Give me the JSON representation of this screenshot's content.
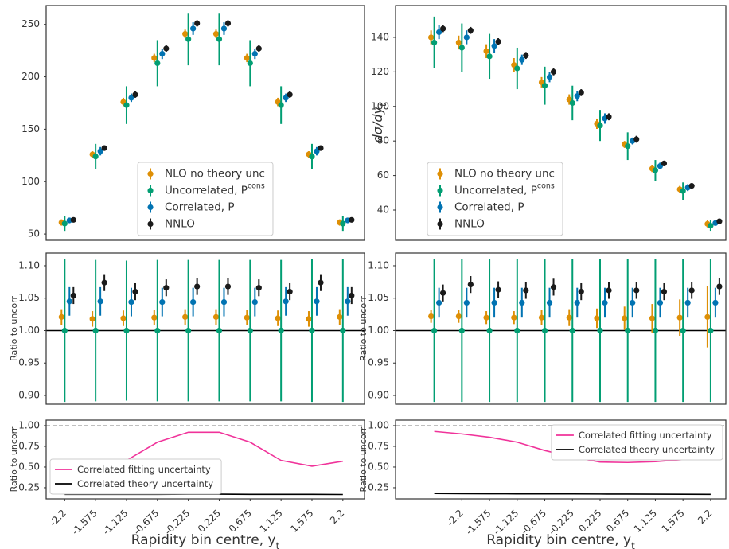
{
  "chart_data": [
    {
      "type": "errorbar",
      "x": [
        0,
        1,
        2,
        3,
        4,
        5,
        6,
        7,
        8,
        9
      ],
      "xlim": [
        -0.6,
        9.7
      ],
      "ylim": [
        44,
        268
      ],
      "yticks": [
        50,
        100,
        150,
        200,
        250
      ],
      "legend": "lower center",
      "series": [
        {
          "name": "NLO no theory unc",
          "color": "#de8f05",
          "values": [
            61,
            126,
            176,
            218,
            241,
            241,
            218,
            176,
            126,
            61
          ],
          "errors": [
            3,
            3,
            4,
            4,
            4,
            4,
            4,
            4,
            3,
            3
          ]
        },
        {
          "name": "Uncorrelated, P",
          "name_sup": "cons",
          "color": "#029e73",
          "values": [
            60,
            124,
            173,
            213,
            236,
            236,
            213,
            173,
            124,
            60
          ],
          "errors": [
            7,
            12,
            18,
            22,
            25,
            25,
            22,
            18,
            12,
            7
          ]
        },
        {
          "name": "Correlated, P",
          "color": "#0173b2",
          "values": [
            63,
            129,
            180,
            222,
            246,
            246,
            222,
            180,
            129,
            63
          ],
          "errors": [
            2,
            4,
            4,
            5,
            6,
            6,
            5,
            4,
            4,
            2
          ]
        },
        {
          "name": "NNLO",
          "color": "#1a1a1a",
          "values": [
            63.5,
            132,
            183,
            227,
            251,
            251,
            227,
            183,
            132,
            63.5
          ],
          "errors": [
            2,
            2,
            3,
            3,
            3,
            3,
            3,
            3,
            2,
            2
          ]
        }
      ]
    },
    {
      "type": "errorbar",
      "x": [
        0,
        1,
        2,
        3,
        4,
        5,
        6,
        7,
        8,
        9,
        10
      ],
      "xlim": [
        -1.4,
        10.55
      ],
      "ylim": [
        22.5,
        158.4
      ],
      "yticks": [
        40,
        60,
        80,
        100,
        120,
        140
      ],
      "ylabel": "dσ/dy",
      "ylabel_sub": "t",
      "legend": "lower left",
      "series": [
        {
          "name": "NLO no theory unc",
          "color": "#de8f05",
          "values": [
            140,
            137,
            132,
            124,
            114,
            104,
            90,
            78,
            64,
            52,
            32
          ],
          "errors": [
            4,
            4,
            4,
            4,
            3,
            3,
            3,
            2,
            2,
            2,
            2
          ]
        },
        {
          "name": "Uncorrelated, P",
          "name_sup": "cons",
          "color": "#029e73",
          "values": [
            137,
            134,
            129,
            122,
            112,
            102,
            89,
            77,
            63,
            51,
            31
          ],
          "errors": [
            15,
            14,
            13,
            12,
            11,
            10,
            9,
            8,
            6,
            5,
            3
          ]
        },
        {
          "name": "Correlated, P",
          "color": "#0173b2",
          "values": [
            143,
            140,
            135,
            127,
            117,
            106,
            93,
            80,
            65.5,
            53,
            32.5
          ],
          "errors": [
            4,
            4,
            4,
            3,
            3,
            3,
            3,
            2,
            2,
            2,
            1
          ]
        },
        {
          "name": "NNLO",
          "color": "#1a1a1a",
          "values": [
            145,
            144,
            137.5,
            129.5,
            120,
            108,
            94,
            81,
            67,
            54,
            33.5
          ],
          "errors": [
            2,
            2,
            2,
            2,
            2,
            2,
            2,
            2,
            1,
            1,
            1
          ]
        }
      ]
    },
    {
      "type": "errorbar",
      "x": [
        0,
        1,
        2,
        3,
        4,
        5,
        6,
        7,
        8,
        9
      ],
      "xlim": [
        -0.6,
        9.7
      ],
      "ylim": [
        0.8865,
        1.1196
      ],
      "yticks": [
        {
          "value": 1.1,
          "label": "1.10"
        },
        1.05,
        {
          "value": 1,
          "label": "1.00"
        },
        0.95,
        {
          "value": 0.9,
          "label": "0.90"
        }
      ],
      "ylabel": "Ratio to uncorr",
      "hline": 1,
      "series": [
        {
          "color": "#de8f05",
          "values": [
            1.021,
            1.018,
            1.019,
            1.02,
            1.021,
            1.021,
            1.02,
            1.019,
            1.018,
            1.021
          ],
          "errors": [
            0.012,
            0.012,
            0.012,
            0.012,
            0.012,
            0.012,
            0.012,
            0.012,
            0.012,
            0.012
          ]
        },
        {
          "color": "#029e73",
          "values": [
            1,
            1,
            1,
            1,
            1,
            1,
            1,
            1,
            1,
            1
          ],
          "errors": [
            0.11,
            0.109,
            0.108,
            0.109,
            0.109,
            0.109,
            0.109,
            0.109,
            0.11,
            0.11
          ]
        },
        {
          "color": "#0173b2",
          "values": [
            1.045,
            1.045,
            1.044,
            1.044,
            1.044,
            1.044,
            1.044,
            1.045,
            1.045,
            1.045
          ],
          "errors": [
            0.022,
            0.022,
            0.022,
            0.022,
            0.022,
            0.022,
            0.022,
            0.022,
            0.022,
            0.022
          ]
        },
        {
          "color": "#1a1a1a",
          "values": [
            1.054,
            1.074,
            1.06,
            1.066,
            1.068,
            1.068,
            1.066,
            1.06,
            1.074,
            1.054
          ],
          "errors": [
            0.013,
            0.013,
            0.013,
            0.013,
            0.013,
            0.013,
            0.013,
            0.013,
            0.013,
            0.013
          ]
        }
      ]
    },
    {
      "type": "errorbar",
      "x": [
        0,
        1,
        2,
        3,
        4,
        5,
        6,
        7,
        8,
        9,
        10
      ],
      "xlim": [
        -1.4,
        10.55
      ],
      "ylim": [
        0.8865,
        1.1196
      ],
      "yticks": [
        {
          "value": 1.1,
          "label": "1.10"
        },
        1.05,
        {
          "value": 1,
          "label": "1.00"
        },
        0.95,
        {
          "value": 0.9,
          "label": "0.90"
        }
      ],
      "ylabel": "Ratio to uncorr",
      "hline": 1,
      "series": [
        {
          "color": "#de8f05",
          "values": [
            1.022,
            1.022,
            1.02,
            1.02,
            1.02,
            1.02,
            1.019,
            1.019,
            1.019,
            1.02,
            1.021
          ],
          "errors": [
            0.01,
            0.01,
            0.01,
            0.01,
            0.012,
            0.013,
            0.015,
            0.018,
            0.022,
            0.028,
            0.047
          ]
        },
        {
          "color": "#029e73",
          "values": [
            1,
            1,
            1,
            1,
            1,
            1,
            1,
            1,
            1,
            1,
            1
          ],
          "errors": [
            0.11,
            0.11,
            0.11,
            0.11,
            0.11,
            0.11,
            0.11,
            0.11,
            0.11,
            0.11,
            0.11
          ]
        },
        {
          "color": "#0173b2",
          "values": [
            1.043,
            1.043,
            1.043,
            1.043,
            1.043,
            1.043,
            1.043,
            1.043,
            1.043,
            1.043,
            1.043
          ],
          "errors": [
            0.023,
            0.023,
            0.023,
            0.023,
            0.023,
            0.023,
            0.023,
            0.023,
            0.023,
            0.023,
            0.023
          ]
        },
        {
          "color": "#1a1a1a",
          "values": [
            1.058,
            1.071,
            1.063,
            1.062,
            1.067,
            1.06,
            1.062,
            1.062,
            1.06,
            1.062,
            1.068
          ],
          "errors": [
            0.013,
            0.013,
            0.013,
            0.013,
            0.013,
            0.013,
            0.013,
            0.013,
            0.013,
            0.013,
            0.013
          ]
        }
      ]
    },
    {
      "type": "line",
      "x": [
        0,
        1,
        2,
        3,
        4,
        5,
        6,
        7,
        8,
        9
      ],
      "xlim": [
        -0.6,
        9.7
      ],
      "ylim": [
        0.115,
        1.067
      ],
      "yticks": [
        0.25,
        {
          "value": 0.5,
          "label": "0.50"
        },
        0.75,
        {
          "value": 1,
          "label": "1.00"
        }
      ],
      "ylabel": "Ratio to uncorr",
      "hline": 1,
      "hline_dashed": true,
      "legend": "lower left",
      "xticks": [
        {
          "value": 0,
          "label": "-2.2"
        },
        {
          "value": 1,
          "label": "-1.575"
        },
        {
          "value": 2,
          "label": "-1.125"
        },
        {
          "value": 3,
          "label": "-0.675"
        },
        {
          "value": 4,
          "label": "-0.225"
        },
        {
          "value": 5,
          "label": "0.225"
        },
        {
          "value": 6,
          "label": "0.675"
        },
        {
          "value": 7,
          "label": "1.125"
        },
        {
          "value": 8,
          "label": "1.575"
        },
        {
          "value": 9,
          "label": "2.2"
        }
      ],
      "xlabel": "Rapidity bin centre, y",
      "xlabel_sub": "t",
      "series": [
        {
          "name": "Correlated fitting uncertainty",
          "color": "#f0339a",
          "values": [
            0.57,
            0.51,
            0.58,
            0.8,
            0.92,
            0.92,
            0.8,
            0.58,
            0.51,
            0.57
          ]
        },
        {
          "name": "Correlated theory uncertainty",
          "color": "#000000",
          "values": [
            0.17,
            0.17,
            0.17,
            0.17,
            0.172,
            0.172,
            0.17,
            0.17,
            0.17,
            0.168
          ]
        }
      ]
    },
    {
      "type": "line",
      "x": [
        0,
        1,
        2,
        3,
        4,
        5,
        6,
        7,
        8,
        9,
        10
      ],
      "xlim": [
        -1.4,
        10.55
      ],
      "ylim": [
        0.115,
        1.067
      ],
      "yticks": [
        0.25,
        {
          "value": 0.5,
          "label": "0.50"
        },
        0.75,
        {
          "value": 1,
          "label": "1.00"
        }
      ],
      "ylabel": "Ratio to uncorr",
      "hline": 1,
      "hline_dashed": true,
      "legend": "upper right",
      "xticks": [
        {
          "value": 1,
          "label": "-2.2"
        },
        {
          "value": 2,
          "label": "-1.575"
        },
        {
          "value": 3,
          "label": "-1.125"
        },
        {
          "value": 4,
          "label": "-0.675"
        },
        {
          "value": 5,
          "label": "-0.225"
        },
        {
          "value": 6,
          "label": "0.225"
        },
        {
          "value": 7,
          "label": "0.675"
        },
        {
          "value": 8,
          "label": "1.125"
        },
        {
          "value": 9,
          "label": "1.575"
        },
        {
          "value": 10,
          "label": "2.2"
        }
      ],
      "xlabel": "Rapidity bin centre, y",
      "xlabel_sub": "t",
      "series": [
        {
          "name": "Correlated fitting uncertainty",
          "color": "#f0339a",
          "values": [
            0.93,
            0.9,
            0.86,
            0.8,
            0.7,
            0.62,
            0.56,
            0.555,
            0.565,
            0.59,
            0.62
          ]
        },
        {
          "name": "Correlated theory uncertainty",
          "color": "#000000",
          "values": [
            0.18,
            0.178,
            0.177,
            0.176,
            0.175,
            0.175,
            0.174,
            0.173,
            0.172,
            0.171,
            0.17
          ]
        }
      ]
    }
  ]
}
